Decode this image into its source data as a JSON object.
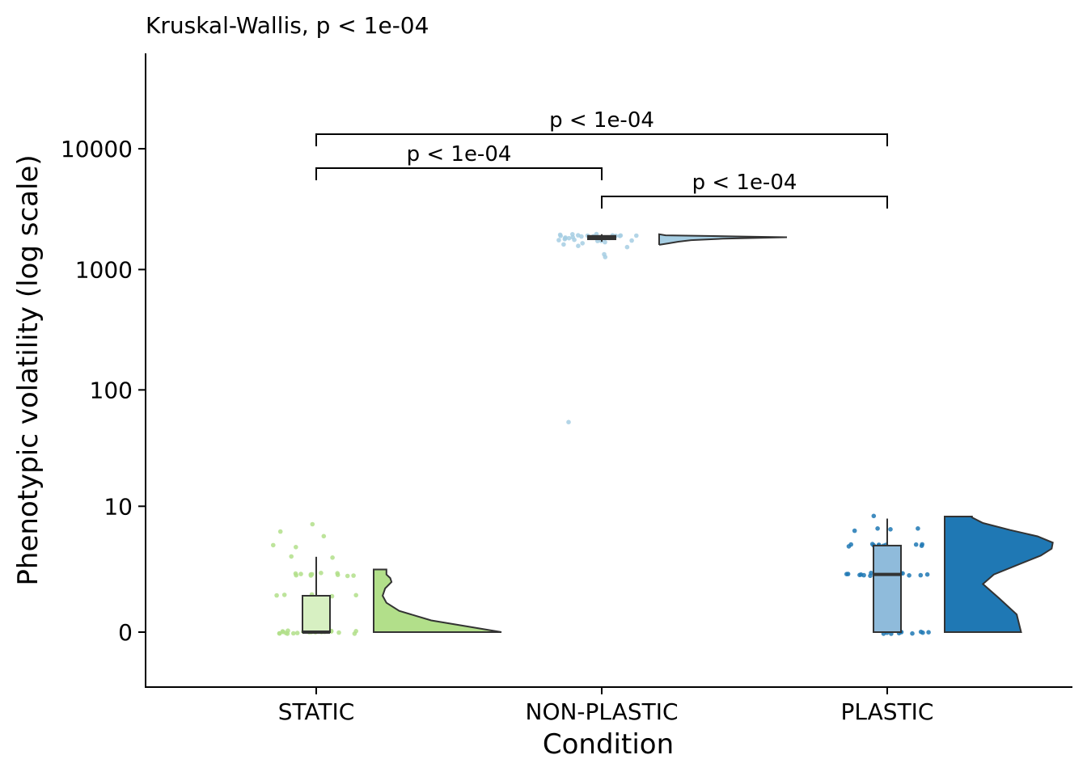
{
  "chart_data": {
    "type": "raincloud",
    "subtitle": "Kruskal-Wallis, p < 1e-04",
    "xlabel": "Condition",
    "ylabel": "Phenotypic volatility (log scale)",
    "y_scale": "log1p",
    "y_ticks": [
      {
        "value": 0,
        "label": "0"
      },
      {
        "value": 10,
        "label": "10"
      },
      {
        "value": 100,
        "label": "100"
      },
      {
        "value": 1000,
        "label": "1000"
      },
      {
        "value": 10000,
        "label": "10000"
      }
    ],
    "categories": [
      "STATIC",
      "NON-PLASTIC",
      "PLASTIC"
    ],
    "groups": [
      {
        "name": "STATIC",
        "color": "#b2df8a",
        "box_fill": "#d7f0c2",
        "box": {
          "min": 0,
          "q1": 0,
          "median": 0,
          "q3": 1,
          "max": 3.2
        },
        "points": [
          0,
          0,
          0,
          0,
          0,
          0,
          0,
          0,
          0,
          0,
          0,
          0,
          0,
          0,
          0,
          0,
          0,
          0,
          0,
          0,
          0,
          0,
          0,
          0,
          0,
          0,
          1,
          1,
          1,
          1,
          1,
          2,
          2,
          2,
          2,
          2,
          2,
          2,
          2,
          2,
          2,
          2,
          3.2,
          3.2,
          4.2,
          4.2,
          5.2,
          6,
          7
        ],
        "density": [
          [
            0,
            1.0
          ],
          [
            0.25,
            0.45
          ],
          [
            0.5,
            0.2
          ],
          [
            0.75,
            0.1
          ],
          [
            1,
            0.07
          ],
          [
            1.3,
            0.09
          ],
          [
            1.6,
            0.14
          ],
          [
            1.8,
            0.13
          ],
          [
            2.0,
            0.1
          ],
          [
            2.3,
            0.1
          ]
        ]
      },
      {
        "name": "NON-PLASTIC",
        "color": "#a6cee3",
        "box_fill": "#cfe4f0",
        "box": {
          "min": 1700,
          "q1": 1780,
          "median": 1850,
          "q3": 1900,
          "max": 1960
        },
        "points": [
          1820,
          1850,
          1880,
          1900,
          1920,
          1940,
          1960,
          1800,
          1760,
          1720,
          1700,
          1680,
          1650,
          1600,
          1550,
          1500,
          1900,
          1870,
          1840,
          1810,
          1780,
          1750,
          1960,
          1930,
          1860,
          1830,
          1790,
          1740,
          1910,
          1950,
          1300,
          1330,
          55
        ],
        "density": [
          [
            1600,
            0.0
          ],
          [
            1650,
            0.08
          ],
          [
            1700,
            0.15
          ],
          [
            1750,
            0.25
          ],
          [
            1800,
            0.5
          ],
          [
            1850,
            1.0
          ],
          [
            1880,
            0.6
          ],
          [
            1920,
            0.05
          ],
          [
            1960,
            0.0
          ]
        ]
      },
      {
        "name": "PLASTIC",
        "color": "#1f78b4",
        "box_fill": "#8fbbdb",
        "box": {
          "min": 0,
          "q1": 0,
          "median": 2,
          "q3": 4.2,
          "max": 7.7
        },
        "points": [
          0,
          0,
          0,
          0,
          0,
          0,
          0,
          0,
          0,
          0,
          0,
          2,
          2,
          2,
          2,
          2,
          2,
          2,
          2,
          2,
          2,
          2,
          2,
          2,
          2,
          2,
          4.2,
          4.2,
          4.2,
          4.2,
          4.2,
          4.2,
          4.2,
          4.2,
          4.2,
          4.2,
          4.2,
          6,
          6,
          6,
          6,
          8
        ],
        "density": [
          [
            0,
            0.7
          ],
          [
            0.4,
            0.66
          ],
          [
            0.9,
            0.5
          ],
          [
            1.5,
            0.35
          ],
          [
            2,
            0.45
          ],
          [
            2.7,
            0.7
          ],
          [
            3.3,
            0.88
          ],
          [
            3.9,
            0.98
          ],
          [
            4.5,
            0.99
          ],
          [
            5.2,
            0.85
          ],
          [
            6,
            0.6
          ],
          [
            7,
            0.35
          ],
          [
            7.9,
            0.25
          ],
          [
            8.05,
            0.25
          ]
        ]
      }
    ],
    "comparisons": [
      {
        "from": "STATIC",
        "to": "NON-PLASTIC",
        "label": "p < 1e-04"
      },
      {
        "from": "NON-PLASTIC",
        "to": "PLASTIC",
        "label": "p < 1e-04"
      },
      {
        "from": "STATIC",
        "to": "PLASTIC",
        "label": "p < 1e-04"
      }
    ]
  }
}
